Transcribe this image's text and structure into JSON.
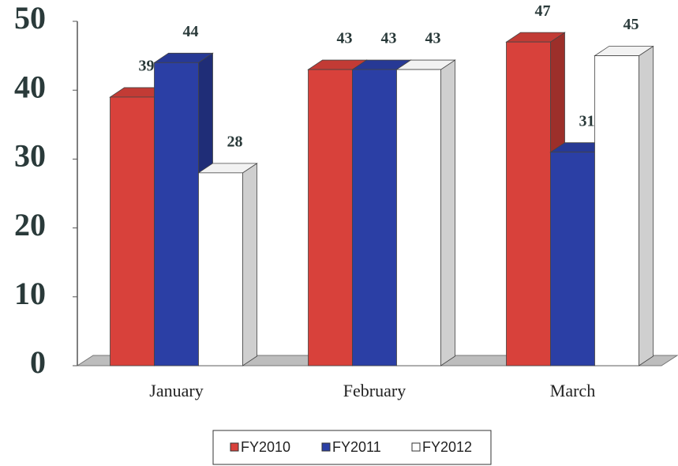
{
  "chart_data": {
    "type": "bar3d",
    "categories": [
      "January",
      "February",
      "March"
    ],
    "series": [
      {
        "name": "FY2010",
        "color": "#d8413b",
        "values": [
          39,
          43,
          47
        ]
      },
      {
        "name": "FY2011",
        "color": "#2b3fa5",
        "values": [
          44,
          43,
          31
        ]
      },
      {
        "name": "FY2012",
        "color": "#ffffff",
        "values": [
          28,
          43,
          45
        ]
      }
    ],
    "ylim": [
      0,
      50
    ],
    "yticks": [
      0,
      10,
      20,
      30,
      40,
      50
    ],
    "legend": "bottom"
  }
}
